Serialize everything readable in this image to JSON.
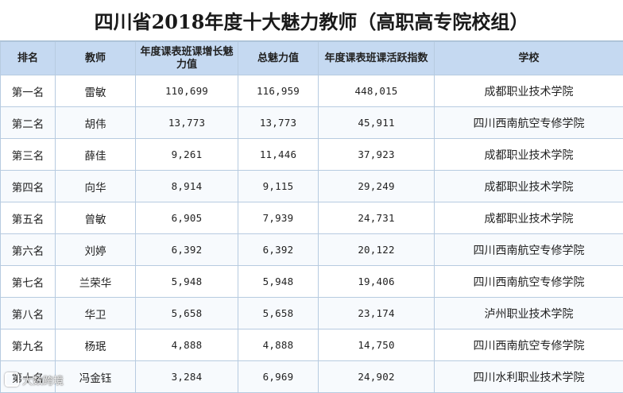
{
  "title": "四川省2018年度十大魅力教师（高职高专院校组）",
  "headers": {
    "rank": "排名",
    "teacher": "教师",
    "growth": "年度课表班课增长魅力值",
    "total": "总魅力值",
    "activity": "年度课表班课活跃指数",
    "school": "学校"
  },
  "rows": [
    {
      "rank": "第一名",
      "teacher": "雷敏",
      "growth": "110,699",
      "total": "116,959",
      "activity": "448,015",
      "school": "成都职业技术学院"
    },
    {
      "rank": "第二名",
      "teacher": "胡伟",
      "growth": "13,773",
      "total": "13,773",
      "activity": "45,911",
      "school": "四川西南航空专修学院"
    },
    {
      "rank": "第三名",
      "teacher": "薛佳",
      "growth": "9,261",
      "total": "11,446",
      "activity": "37,923",
      "school": "成都职业技术学院"
    },
    {
      "rank": "第四名",
      "teacher": "向华",
      "growth": "8,914",
      "total": "9,115",
      "activity": "29,249",
      "school": "成都职业技术学院"
    },
    {
      "rank": "第五名",
      "teacher": "曾敏",
      "growth": "6,905",
      "total": "7,939",
      "activity": "24,731",
      "school": "成都职业技术学院"
    },
    {
      "rank": "第六名",
      "teacher": "刘婷",
      "growth": "6,392",
      "total": "6,392",
      "activity": "20,122",
      "school": "四川西南航空专修学院"
    },
    {
      "rank": "第七名",
      "teacher": "兰荣华",
      "growth": "5,948",
      "total": "5,948",
      "activity": "19,406",
      "school": "四川西南航空专修学院"
    },
    {
      "rank": "第八名",
      "teacher": "华卫",
      "growth": "5,658",
      "total": "5,658",
      "activity": "23,174",
      "school": "泸州职业技术学院"
    },
    {
      "rank": "第九名",
      "teacher": "杨珉",
      "growth": "4,888",
      "total": "4,888",
      "activity": "14,750",
      "school": "四川西南航空专修学院"
    },
    {
      "rank": "第十名",
      "teacher": "冯金钰",
      "growth": "3,284",
      "total": "6,969",
      "activity": "24,902",
      "school": "四川水利职业技术学院"
    }
  ],
  "watermark": "大数跨境",
  "colors": {
    "header_bg": "#c5d9f1",
    "border": "#b7cbe0"
  }
}
